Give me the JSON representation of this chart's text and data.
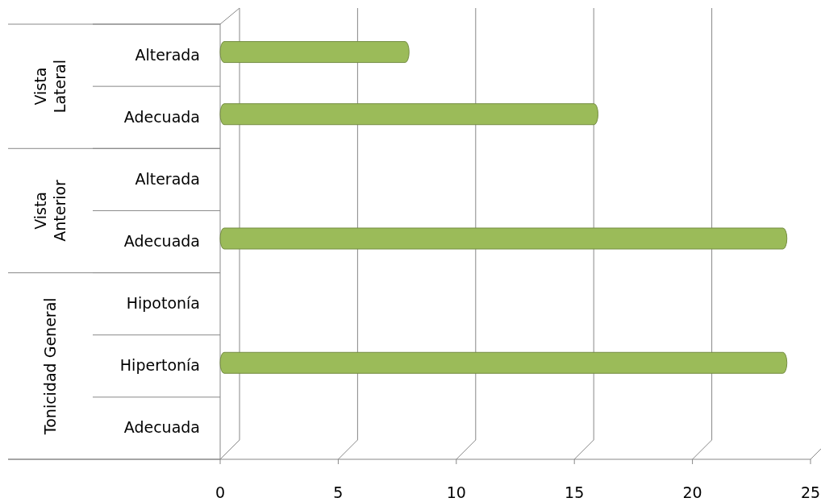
{
  "chart_data": {
    "type": "bar",
    "orientation": "horizontal",
    "categories": [
      "Alterada",
      "Adecuada",
      "Alterada",
      "Adecuada",
      "Hipotonía",
      "Hipertonía",
      "Adecuada"
    ],
    "values": [
      8,
      16,
      0,
      24,
      0,
      24,
      0
    ],
    "color": "#9bbb59",
    "xlim": [
      0,
      25
    ],
    "xticks": [
      0,
      5,
      10,
      15,
      20,
      25
    ],
    "grid": "x",
    "annotations": [
      "Vista Lateral",
      "Vista Anterior",
      "Tonicidad General"
    ]
  }
}
